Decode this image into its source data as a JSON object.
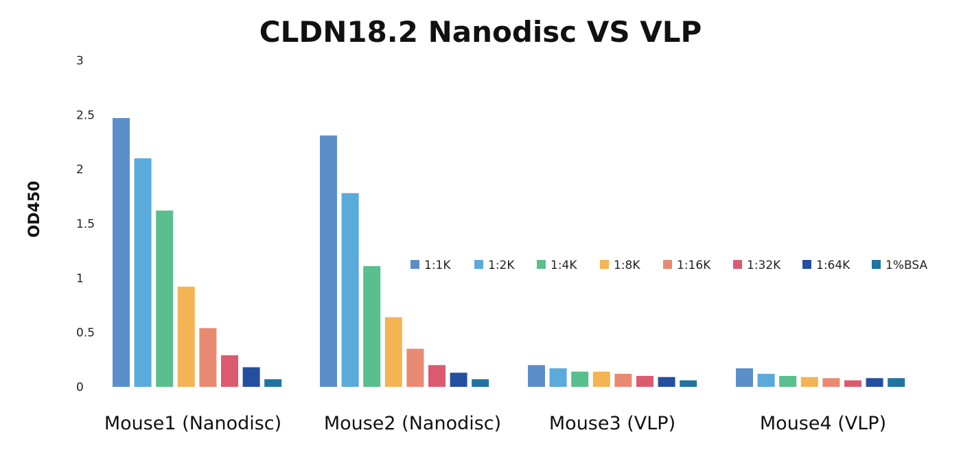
{
  "chart_data": {
    "type": "bar",
    "title": "CLDN18.2 Nanodisc VS VLP",
    "xlabel": "",
    "ylabel": "OD450",
    "ylim": [
      0,
      3
    ],
    "yticks": [
      "0",
      "0.5",
      "1",
      "1.5",
      "2",
      "2.5",
      "3"
    ],
    "grid": false,
    "legend_position": "right",
    "categories": [
      "Mouse1 (Nanodisc)",
      "Mouse2 (Nanodisc)",
      "Mouse3 (VLP)",
      "Mouse4 (VLP)"
    ],
    "series": [
      {
        "name": "1:1K",
        "color": "#5b8fc9",
        "values": [
          2.47,
          2.31,
          0.2,
          0.17
        ]
      },
      {
        "name": "1:2K",
        "color": "#5aaadb",
        "values": [
          2.1,
          1.78,
          0.17,
          0.12
        ]
      },
      {
        "name": "1:4K",
        "color": "#59bf8c",
        "values": [
          1.62,
          1.11,
          0.14,
          0.1
        ]
      },
      {
        "name": "1:8K",
        "color": "#f5b454",
        "values": [
          0.92,
          0.64,
          0.14,
          0.09
        ]
      },
      {
        "name": "1:16K",
        "color": "#e88a71",
        "values": [
          0.54,
          0.35,
          0.12,
          0.08
        ]
      },
      {
        "name": "1:32K",
        "color": "#dc5a70",
        "values": [
          0.29,
          0.2,
          0.1,
          0.06
        ]
      },
      {
        "name": "1:64K",
        "color": "#244f9e",
        "values": [
          0.18,
          0.13,
          0.09,
          0.08
        ]
      },
      {
        "name": "1%BSA",
        "color": "#1f74a0",
        "values": [
          0.07,
          0.07,
          0.06,
          0.08
        ]
      }
    ]
  }
}
